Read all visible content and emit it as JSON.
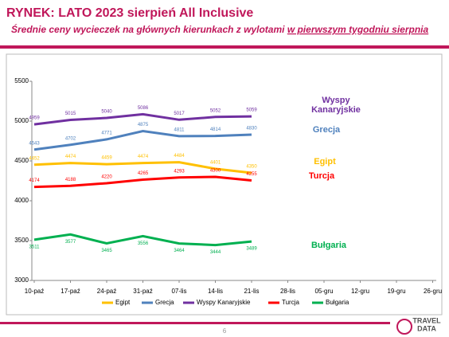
{
  "chart_data": {
    "type": "line",
    "title": "RYNEK: LATO 2023 sierpień All Inclusive",
    "subtitle": "Średnie ceny wycieczek na głównych kierunkach z wylotami ",
    "subtitle_underlined": "w pierwszym tygodniu sierpnia",
    "categories": [
      "10-paź",
      "17-paź",
      "24-paź",
      "31-paź",
      "07-lis",
      "14-lis",
      "21-lis",
      "28-lis",
      "05-gru",
      "12-gru",
      "19-gru",
      "26-gru"
    ],
    "series": [
      {
        "name": "Egipt",
        "color": "#ffc000",
        "values": [
          4452,
          4474,
          4459,
          4474,
          4484,
          4401,
          4350,
          null,
          null,
          null,
          null,
          null
        ]
      },
      {
        "name": "Grecja",
        "color": "#4f81bd",
        "values": [
          4643,
          4702,
          4771,
          4875,
          4811,
          4814,
          4830,
          null,
          null,
          null,
          null,
          null
        ]
      },
      {
        "name": "Wyspy Kanaryjskie",
        "color": "#7030a0",
        "values": [
          4959,
          5015,
          5040,
          5086,
          5017,
          5052,
          5059,
          null,
          null,
          null,
          null,
          null
        ]
      },
      {
        "name": "Turcja",
        "color": "#ff0000",
        "values": [
          4174,
          4188,
          4220,
          4265,
          4293,
          4300,
          4255,
          null,
          null,
          null,
          null,
          null
        ]
      },
      {
        "name": "Bułgaria",
        "color": "#00b050",
        "values": [
          3511,
          3577,
          3465,
          3556,
          3464,
          3444,
          3489,
          null,
          null,
          null,
          null,
          null
        ]
      }
    ],
    "ylim": [
      3000,
      5500
    ],
    "yticks": [
      3000,
      3500,
      4000,
      4500,
      5000,
      5500
    ],
    "grid": false,
    "legend": "bottom"
  },
  "page_number": "6",
  "logo": {
    "top": "TRAVEL",
    "bottom": "DATA"
  }
}
